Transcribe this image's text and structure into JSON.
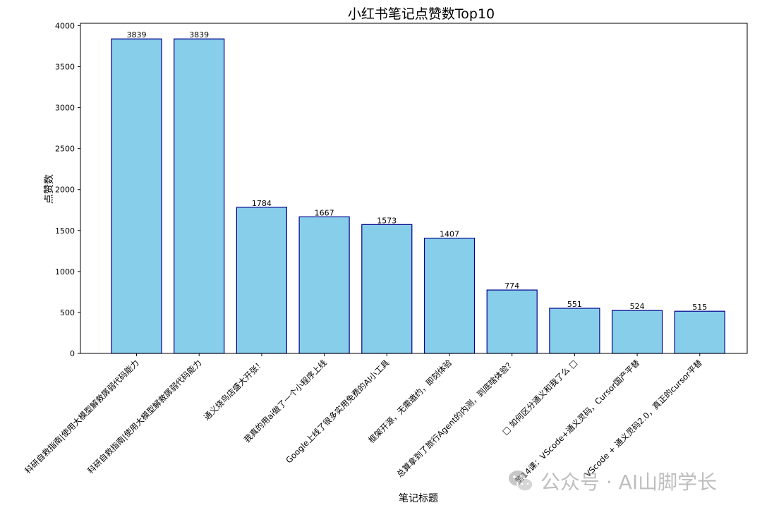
{
  "chart_data": {
    "type": "bar",
    "title": "小红书笔记点赞数Top10",
    "xlabel": "笔记标题",
    "ylabel": "点赞数",
    "categories": [
      "科研自救指南|使用大模型解救孱弱代码能力",
      "科研自救指南|使用大模型解救孱弱代码能力",
      "通义烧鸟店盛大开张！",
      "我真的用ai做了一个小程序上线",
      "Google上线了很多实用免费的AI小工具",
      "框架开源，无需邀约，即刻体验",
      "总算拿到了旅行Agent的内测，到底啥体验？",
      "□ 如何区分通义和我了么 □",
      "第14课：VScode+通义灵码，Cursor国产平替",
      "VScode + 通义灵码2.0，真正的cursor平替"
    ],
    "values": [
      3839,
      3839,
      1784,
      1667,
      1573,
      1407,
      774,
      551,
      524,
      515
    ],
    "value_labels": [
      "3839",
      "3839",
      "1784",
      "1667",
      "1573",
      "1407",
      "774",
      "551",
      "524",
      "515"
    ],
    "ylim": [
      0,
      4030
    ],
    "yticks": [
      0,
      500,
      1000,
      1500,
      2000,
      2500,
      3000,
      3500,
      4000
    ],
    "ytick_labels": [
      "0",
      "500",
      "1000",
      "1500",
      "2000",
      "2500",
      "3000",
      "3500",
      "4000"
    ],
    "grid": false,
    "colors": {
      "bar_fill": "#87ceeb",
      "bar_edge": "#00008b",
      "axis": "#000000",
      "text": "#000000"
    }
  },
  "watermark": {
    "text": "公众号 · AI山脚学长",
    "icon": "wechat-logo-icon"
  }
}
